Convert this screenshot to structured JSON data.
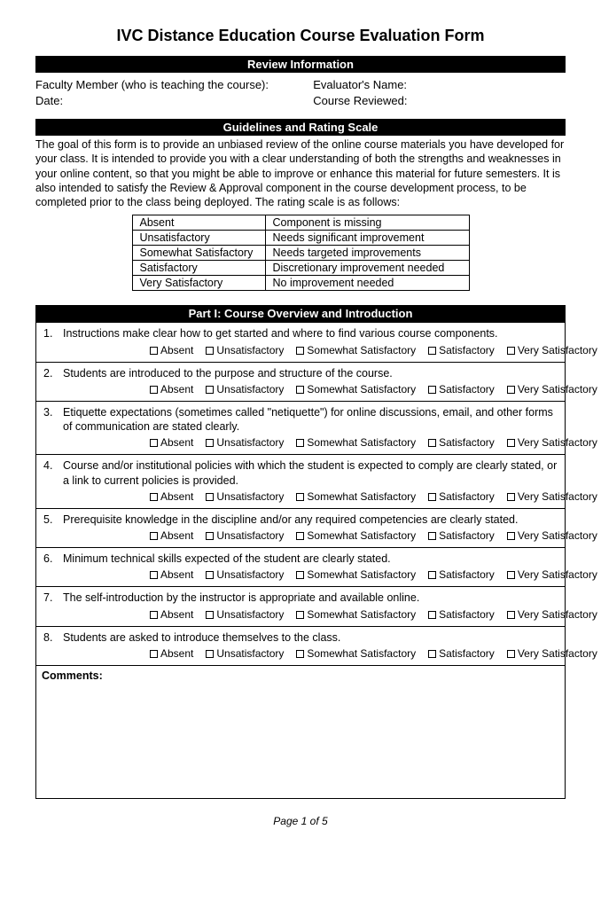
{
  "title": "IVC Distance Education Course Evaluation Form",
  "section_review": "Review Information",
  "review": {
    "faculty_label": "Faculty Member (who is teaching the course):",
    "evaluator_label": "Evaluator's Name:",
    "date_label": "Date:",
    "course_reviewed_label": "Course Reviewed:"
  },
  "section_guidelines": "Guidelines and Rating Scale",
  "goal_text": "The goal of this form is to provide an unbiased review of the online course materials you have developed for your class.  It is intended to provide you with a clear understanding of both the strengths and weaknesses in your online content, so that you might be able to improve or enhance this material for future semesters.  It is also intended to satisfy the Review & Approval component in the course development process, to be completed prior to the class being deployed. The rating scale is as follows:",
  "rating_scale": [
    [
      "Absent",
      "Component is missing"
    ],
    [
      "Unsatisfactory",
      "Needs significant improvement"
    ],
    [
      "Somewhat Satisfactory",
      "Needs targeted improvements"
    ],
    [
      "Satisfactory",
      "Discretionary improvement needed"
    ],
    [
      "Very Satisfactory",
      "No improvement needed"
    ]
  ],
  "section_part1": "Part I: Course Overview and Introduction",
  "rating_options": [
    "Absent",
    "Unsatisfactory",
    "Somewhat Satisfactory",
    "Satisfactory",
    "Very Satisfactory"
  ],
  "questions": [
    {
      "num": "1.",
      "text": "Instructions make clear how to get started and where to find various course components."
    },
    {
      "num": "2.",
      "text": "Students are introduced to the purpose and structure of the course."
    },
    {
      "num": "3.",
      "text": "Etiquette expectations (sometimes called \"netiquette\") for online discussions, email, and other forms of communication are stated clearly."
    },
    {
      "num": "4.",
      "text": "Course and/or institutional policies with which the student is expected to comply are clearly stated, or a link to current policies is provided."
    },
    {
      "num": "5.",
      "text": "Prerequisite knowledge in the discipline and/or any required competencies are clearly stated."
    },
    {
      "num": "6.",
      "text": "Minimum technical skills expected of the student are clearly stated."
    },
    {
      "num": "7.",
      "text": "The self-introduction by the instructor is appropriate and available online."
    },
    {
      "num": "8.",
      "text": "Students are asked to introduce themselves to the class."
    }
  ],
  "comments_label": "Comments:",
  "footer": "Page 1 of 5"
}
